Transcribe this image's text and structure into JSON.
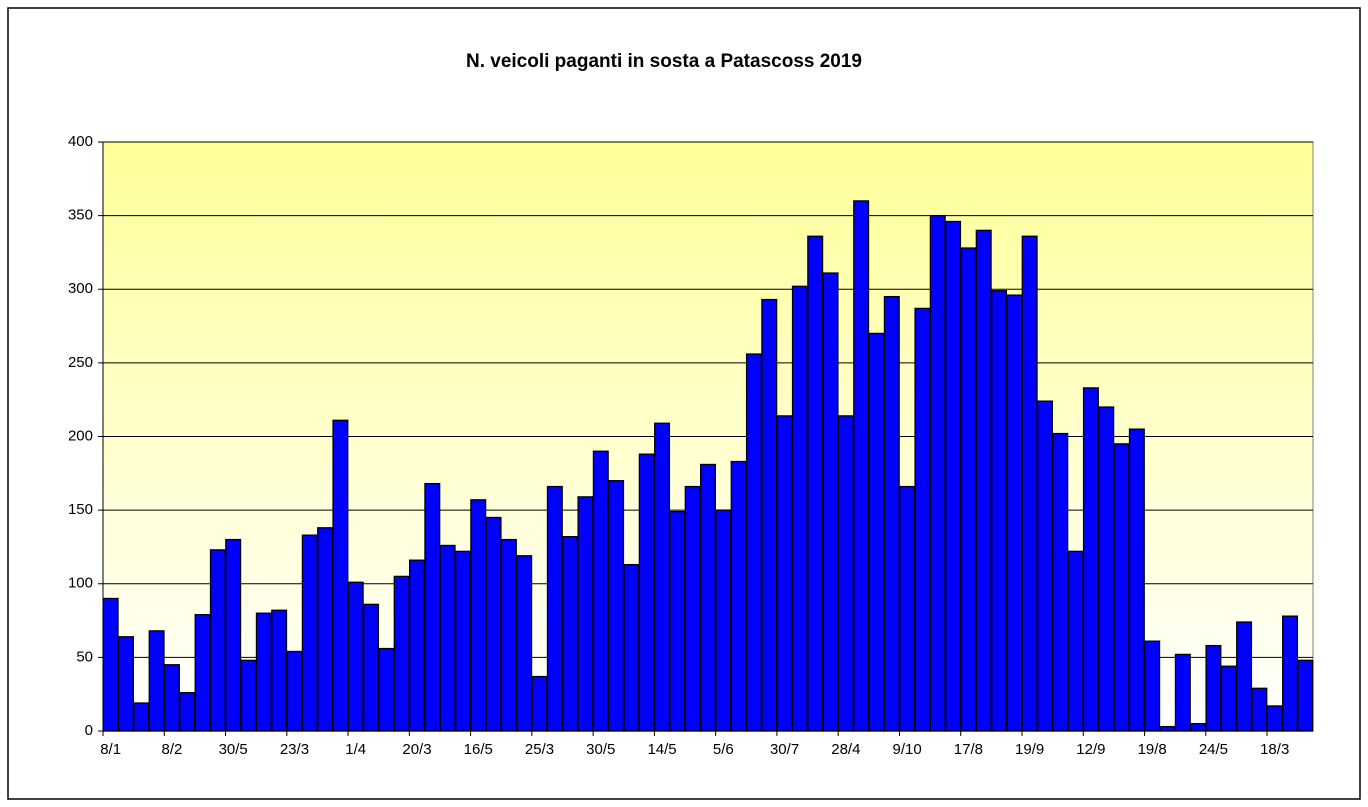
{
  "chart_data": {
    "type": "bar",
    "title": "N. veicoli paganti in sosta a Patascoss 2019",
    "categories": [
      "8/1",
      null,
      null,
      null,
      "8/2",
      null,
      null,
      null,
      "30/5",
      null,
      null,
      null,
      "23/3",
      null,
      null,
      null,
      "1/4",
      null,
      null,
      null,
      "20/3",
      null,
      null,
      null,
      "16/5",
      null,
      null,
      null,
      "25/3",
      null,
      null,
      null,
      "30/5",
      null,
      null,
      null,
      "14/5",
      null,
      null,
      null,
      "5/6",
      null,
      null,
      null,
      "30/7",
      null,
      null,
      null,
      "28/4",
      null,
      null,
      null,
      "9/10",
      null,
      null,
      null,
      "17/8",
      null,
      null,
      null,
      "19/9",
      null,
      null,
      null,
      "12/9",
      null,
      null,
      null,
      "19/8",
      null,
      null,
      null,
      "24/5",
      null,
      null,
      null,
      "18/3",
      null,
      null
    ],
    "values": [
      90,
      64,
      19,
      68,
      45,
      26,
      79,
      123,
      130,
      48,
      80,
      82,
      54,
      133,
      138,
      211,
      101,
      86,
      56,
      105,
      116,
      168,
      126,
      122,
      157,
      145,
      130,
      119,
      37,
      166,
      132,
      159,
      190,
      170,
      113,
      188,
      209,
      149,
      166,
      181,
      150,
      183,
      256,
      293,
      214,
      302,
      336,
      311,
      214,
      360,
      270,
      295,
      166,
      287,
      350,
      346,
      328,
      340,
      299,
      296,
      336,
      224,
      202,
      122,
      233,
      220,
      195,
      205,
      61,
      3,
      52,
      5,
      58,
      44,
      74,
      29,
      17,
      78,
      48
    ],
    "color": "#0000ff",
    "ylim": [
      0,
      400
    ],
    "yticks": [
      0,
      50,
      100,
      150,
      200,
      250,
      300,
      350,
      400
    ],
    "grid": true
  }
}
